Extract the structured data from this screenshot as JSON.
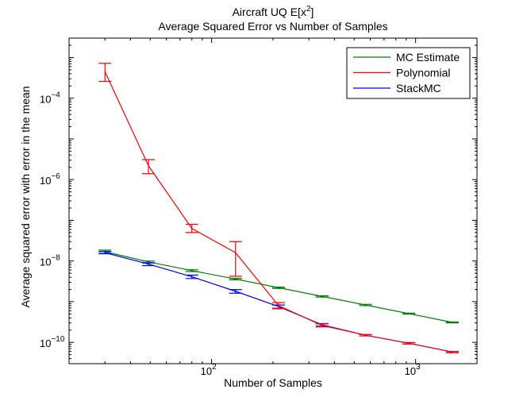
{
  "chart_data": {
    "type": "line",
    "title_line1": "Aircraft UQ E[x",
    "title_sup": "2",
    "title_line1_end": "]",
    "title_line2": "Average Squared Error vs Number of Samples",
    "xlabel": "Number of Samples",
    "ylabel": "Average squared error with error in the mean",
    "xscale": "log",
    "yscale": "log",
    "xlim": [
      20,
      2000
    ],
    "ylim": [
      3e-11,
      0.003
    ],
    "xticks": [
      {
        "value": 100,
        "base": "10",
        "exp": "2"
      },
      {
        "value": 1000,
        "base": "10",
        "exp": "3"
      }
    ],
    "yticks": [
      {
        "value": 1e-10,
        "base": "10",
        "exp": "−10"
      },
      {
        "value": 1e-08,
        "base": "10",
        "exp": "−8"
      },
      {
        "value": 1e-06,
        "base": "10",
        "exp": "−6"
      },
      {
        "value": 0.0001,
        "base": "10",
        "exp": "−4"
      }
    ],
    "grid": false,
    "legend_position": "top-right",
    "series": [
      {
        "name": "MC Estimate",
        "color": "#008000",
        "x": [
          30,
          49,
          80,
          131,
          213,
          348,
          568,
          927,
          1514
        ],
        "y": [
          1.7e-08,
          9.5e-09,
          5.8e-09,
          3.6e-09,
          2.2e-09,
          1.35e-09,
          8.3e-10,
          5.1e-10,
          3.1e-10
        ],
        "err_low": [
          1.55e-08,
          8.9e-09,
          5.5e-09,
          3.45e-09,
          2.12e-09,
          1.3e-09,
          8e-10,
          4.95e-10,
          3.02e-10
        ],
        "err_high": [
          1.85e-08,
          1e-08,
          6.1e-09,
          3.75e-09,
          2.28e-09,
          1.4e-09,
          8.6e-10,
          5.25e-10,
          3.18e-10
        ]
      },
      {
        "name": "Polynomial",
        "color": "#ff0000",
        "x": [
          30,
          49,
          80,
          131,
          213,
          348,
          568,
          927,
          1514
        ],
        "y": [
          0.00045,
          2.2e-06,
          6.3e-08,
          1.6e-08,
          8e-10,
          2.6e-10,
          1.5e-10,
          9.5e-11,
          5.8e-11
        ],
        "err_low": [
          0.00026,
          1.4e-06,
          5e-08,
          4.2e-09,
          6.7e-10,
          2.4e-10,
          1.44e-10,
          9.1e-11,
          5.6e-11
        ],
        "err_high": [
          0.00072,
          3.1e-06,
          8e-08,
          3e-08,
          9.5e-10,
          2.85e-10,
          1.56e-10,
          9.9e-11,
          6e-11
        ]
      },
      {
        "name": "StackMC",
        "color": "#0000ff",
        "x": [
          30,
          49,
          80,
          131,
          213,
          348,
          568,
          927,
          1514
        ],
        "y": [
          1.6e-08,
          8.4e-09,
          4.1e-09,
          1.8e-09,
          7.6e-10,
          2.7e-10,
          1.5e-10,
          9.5e-11,
          5.8e-11
        ],
        "err_low": [
          1.5e-08,
          7.7e-09,
          3.7e-09,
          1.62e-09,
          6.9e-10,
          2.5e-10,
          1.44e-10,
          9.1e-11,
          5.6e-11
        ],
        "err_high": [
          1.72e-08,
          9.1e-09,
          4.5e-09,
          1.98e-09,
          8.3e-10,
          2.9e-10,
          1.56e-10,
          9.9e-11,
          6e-11
        ]
      }
    ]
  }
}
